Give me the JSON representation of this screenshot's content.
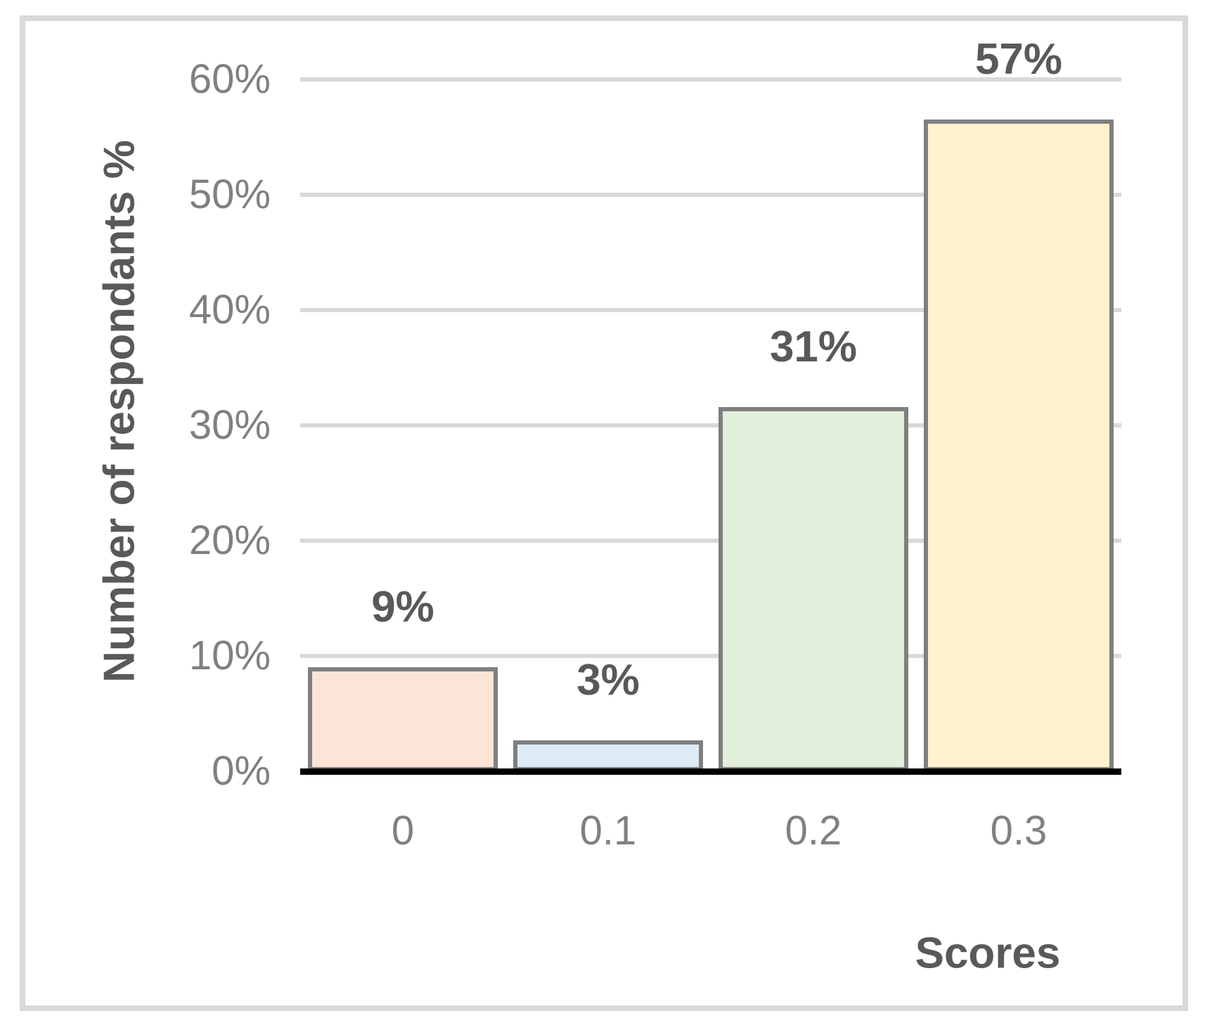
{
  "chart_data": {
    "type": "bar",
    "title": "",
    "xlabel": "Scores",
    "ylabel": "Number of respondants %",
    "categories": [
      "0",
      "0.1",
      "0.2",
      "0.3"
    ],
    "values": [
      9,
      3,
      31,
      57
    ],
    "data_labels": [
      "9%",
      "3%",
      "31%",
      "57%"
    ],
    "display_heights_pct": [
      9.0,
      2.7,
      31.6,
      56.5
    ],
    "ylim": [
      0,
      60
    ],
    "y_tick_step": 10,
    "y_ticks": [
      {
        "value": 60,
        "label": "60%"
      },
      {
        "value": 50,
        "label": "50%"
      },
      {
        "value": 40,
        "label": "40%"
      },
      {
        "value": 30,
        "label": "30%"
      },
      {
        "value": 20,
        "label": "20%"
      },
      {
        "value": 10,
        "label": "10%"
      },
      {
        "value": 0,
        "label": "0%"
      }
    ],
    "grid": "horizontal",
    "legend": "none",
    "colors": {
      "bar_fills": [
        "#FCE5D6",
        "#DDEBF7",
        "#E2EFDA",
        "#FFF2CC"
      ],
      "bar_border": "#7F7F7F",
      "gridline": "#D9D9D9",
      "axis_line": "#000000",
      "tick_text": "#808080",
      "label_text": "#595959",
      "figure_border": "#D9D9D9",
      "background": "#FFFFFF"
    }
  }
}
